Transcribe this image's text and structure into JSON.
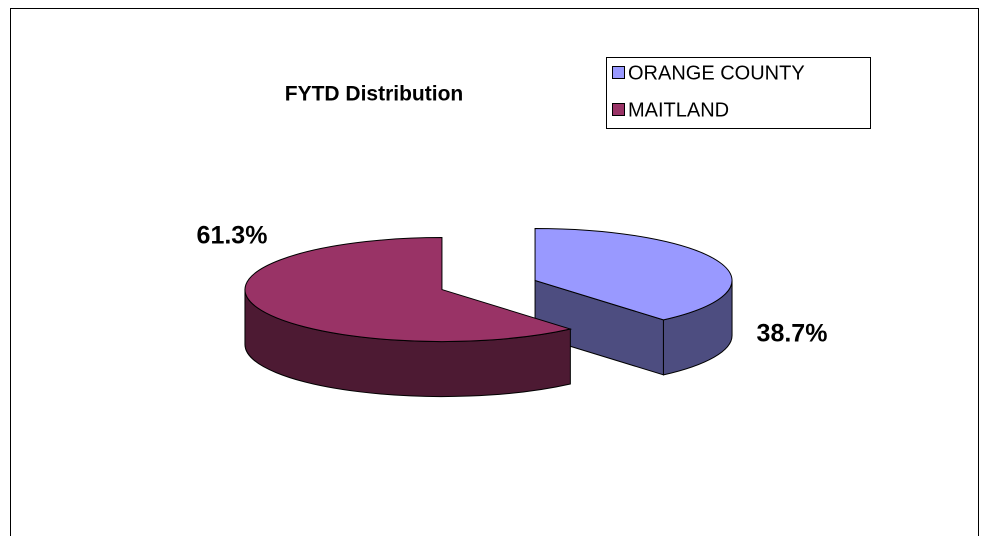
{
  "chart_data": {
    "type": "pie",
    "title": "FYTD Distribution",
    "categories": [
      "ORANGE COUNTY",
      "MAITLAND"
    ],
    "values": [
      38.7,
      61.3
    ],
    "value_labels": [
      "38.7%",
      "61.3%"
    ],
    "colors": [
      "#9999ff",
      "#993366"
    ],
    "legend": "top-right"
  }
}
